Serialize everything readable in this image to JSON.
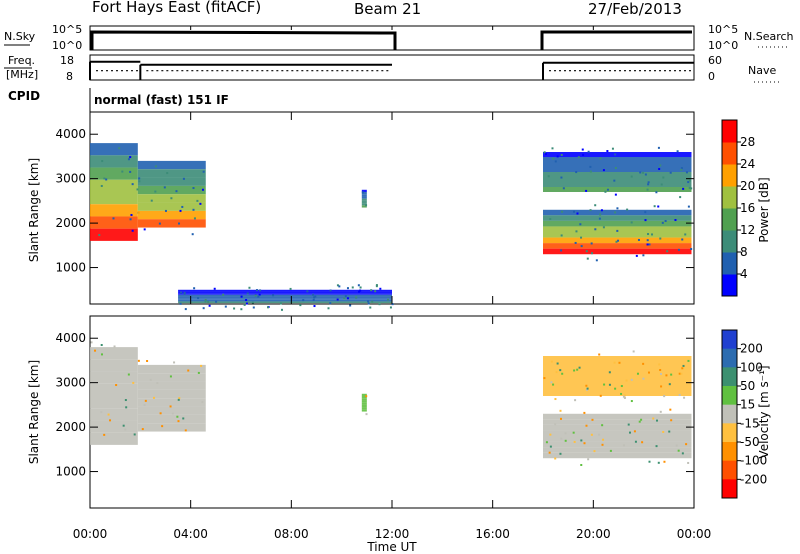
{
  "header": {
    "station": "Fort Hays East (fitACF)",
    "beam": "Beam 21",
    "date": "27/Feb/2013"
  },
  "noise_panel": {
    "left_label": "N.Sky",
    "right_label": "N.Search",
    "left_ticks": [
      "10^5",
      "10^0"
    ],
    "right_ticks": [
      "10^5",
      "10^0"
    ]
  },
  "freq_panel": {
    "left_label_top": "Freq.",
    "left_label_bottom": "[MHz]",
    "right_label": "Nave",
    "left_ticks": [
      "18",
      "8"
    ],
    "right_ticks": [
      "60",
      "0"
    ],
    "freq_steps": [
      {
        "t0": 0.0,
        "t1": 2.0,
        "mhz": 16.5
      },
      {
        "t0": 2.0,
        "t1": 12.0,
        "mhz": 14.8
      },
      {
        "t0": 18.0,
        "t1": 24.0,
        "mhz": 15.9
      }
    ],
    "nave_level": 20
  },
  "cpid": {
    "label": "CPID",
    "mode": "normal (fast) 151 IF"
  },
  "range_axis": {
    "label": "Slant Range [km]",
    "ticks": [
      "1000",
      "2000",
      "3000",
      "4000"
    ]
  },
  "time_axis": {
    "label": "Time UT",
    "ticks": [
      "00:00",
      "04:00",
      "08:00",
      "12:00",
      "16:00",
      "20:00",
      "00:00"
    ]
  },
  "power_colorbar": {
    "label": "Power [dB]",
    "ticks": [
      "4",
      "8",
      "12",
      "16",
      "20",
      "24",
      "28"
    ],
    "colors": [
      "#0000ff",
      "#2060b0",
      "#3c8c78",
      "#50a050",
      "#a0c040",
      "#ffa000",
      "#ff5000",
      "#ff0000"
    ]
  },
  "velocity_colorbar": {
    "label": "Velocity [m s⁻¹]",
    "ticks": [
      "200",
      "100",
      "50",
      "15",
      "-15",
      "-50",
      "-100",
      "-200"
    ],
    "colors": [
      "#2040d0",
      "#2c6cb0",
      "#3c9070",
      "#60c040",
      "#c0c0b8",
      "#ffc040",
      "#ff9000",
      "#ff5000",
      "#ff0000"
    ]
  },
  "chart_data": [
    {
      "type": "heatmap",
      "title": "Power",
      "xlabel": "Time UT",
      "ylabel": "Slant Range [km]",
      "xlim": [
        0,
        24
      ],
      "ylim": [
        180,
        4500
      ],
      "x_unit": "hours UT",
      "value_label": "Power [dB]",
      "regions": [
        {
          "t0": 0.0,
          "t1": 1.9,
          "r_low": 1600,
          "r_high": 3800,
          "peak_db": 28
        },
        {
          "t0": 1.9,
          "t1": 4.6,
          "r_low": 1900,
          "r_high": 3400,
          "peak_db": 24
        },
        {
          "t0": 10.8,
          "t1": 11.0,
          "r_low": 2350,
          "r_high": 2750,
          "peak_db": 12
        },
        {
          "t0": 18.0,
          "t1": 23.9,
          "r_low": 1300,
          "r_high": 2300,
          "peak_db": 28
        },
        {
          "t0": 18.0,
          "t1": 23.9,
          "r_low": 2700,
          "r_high": 3600,
          "peak_db": 12
        },
        {
          "t0": 3.5,
          "t1": 12.0,
          "r_low": 200,
          "r_high": 500,
          "peak_db": 8
        }
      ]
    },
    {
      "type": "heatmap",
      "title": "Velocity",
      "xlabel": "Time UT",
      "ylabel": "Slant Range [km]",
      "xlim": [
        0,
        24
      ],
      "ylim": [
        180,
        4500
      ],
      "x_unit": "hours UT",
      "value_label": "Velocity [m s⁻¹]",
      "regions": [
        {
          "t0": 0.0,
          "t1": 1.9,
          "r_low": 1600,
          "r_high": 3800,
          "typical_ms": 0
        },
        {
          "t0": 1.9,
          "t1": 4.6,
          "r_low": 1900,
          "r_high": 3400,
          "typical_ms": 0
        },
        {
          "t0": 10.8,
          "t1": 11.0,
          "r_low": 2350,
          "r_high": 2750,
          "typical_ms": 30
        },
        {
          "t0": 18.0,
          "t1": 23.9,
          "r_low": 1300,
          "r_high": 2300,
          "typical_ms": 0
        },
        {
          "t0": 18.0,
          "t1": 23.9,
          "r_low": 2700,
          "r_high": 3600,
          "typical_ms": -30
        }
      ]
    }
  ]
}
